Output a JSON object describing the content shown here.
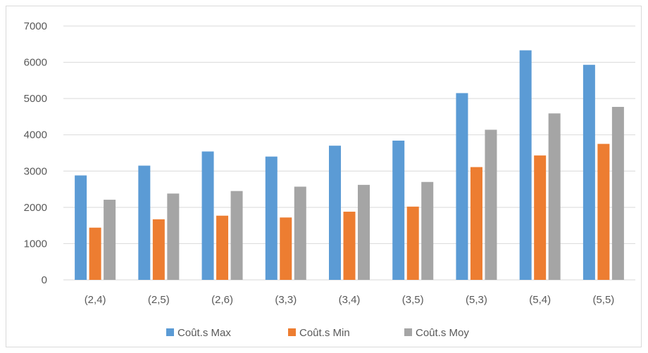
{
  "chart_data": {
    "type": "bar",
    "categories": [
      "(2,4)",
      "(2,5)",
      "(2,6)",
      "(3,3)",
      "(3,4)",
      "(3,5)",
      "(5,3)",
      "(5,4)",
      "(5,5)"
    ],
    "series": [
      {
        "name": "Coût.s Max",
        "color": "#5b9bd5",
        "values": [
          2880,
          3150,
          3540,
          3400,
          3700,
          3840,
          5150,
          6330,
          5930
        ]
      },
      {
        "name": "Coût.s Min",
        "color": "#ed7d31",
        "values": [
          1440,
          1670,
          1770,
          1720,
          1880,
          2020,
          3110,
          3430,
          3750
        ]
      },
      {
        "name": "Coût.s Moy",
        "color": "#a5a5a5",
        "values": [
          2210,
          2380,
          2450,
          2570,
          2620,
          2700,
          4140,
          4590,
          4770
        ]
      }
    ],
    "yticks": [
      "0",
      "1000",
      "2000",
      "3000",
      "4000",
      "5000",
      "6000",
      "7000"
    ],
    "ylim": [
      0,
      7000
    ],
    "grid": true,
    "legend_position": "bottom",
    "title": "",
    "xlabel": "",
    "ylabel": ""
  }
}
